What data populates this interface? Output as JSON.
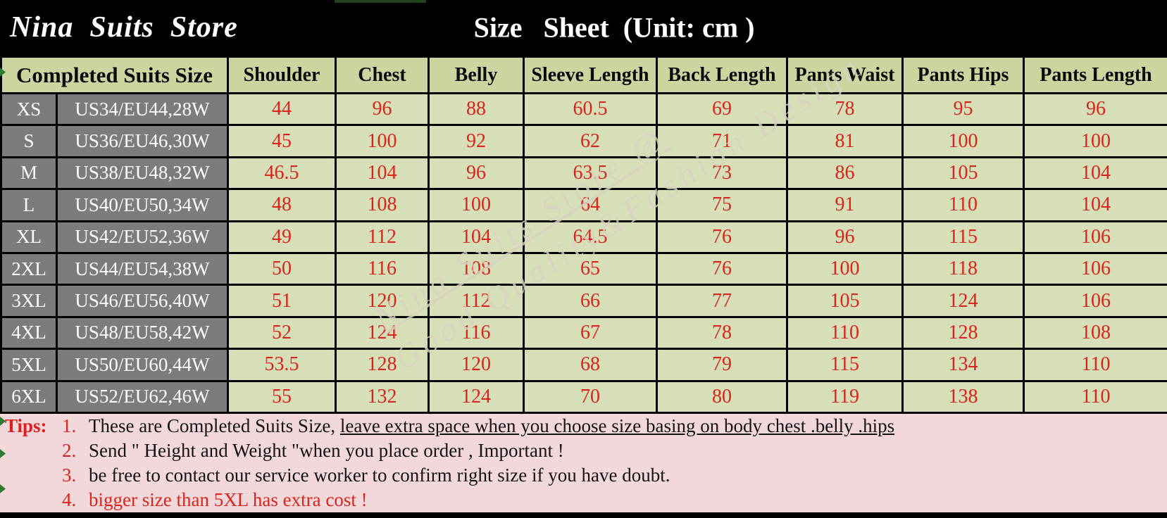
{
  "titlebar": {
    "store_name": "Nina  Suits  Store",
    "sheet_title": "Size   Sheet  (Unit: cm )"
  },
  "table": {
    "merged_header": "Completed Suits Size",
    "columns": [
      "Shoulder",
      "Chest",
      "Belly",
      "Sleeve Length",
      "Back Length",
      "Pants Waist",
      "Pants Hips",
      "Pants Length"
    ],
    "rows": [
      {
        "size": "XS",
        "us_eu": "US34/EU44,28W",
        "values": [
          "44",
          "96",
          "88",
          "60.5",
          "69",
          "78",
          "95",
          "96"
        ]
      },
      {
        "size": "S",
        "us_eu": "US36/EU46,30W",
        "values": [
          "45",
          "100",
          "92",
          "62",
          "71",
          "81",
          "100",
          "100"
        ]
      },
      {
        "size": "M",
        "us_eu": "US38/EU48,32W",
        "values": [
          "46.5",
          "104",
          "96",
          "63.5",
          "73",
          "86",
          "105",
          "104"
        ]
      },
      {
        "size": "L",
        "us_eu": "US40/EU50,34W",
        "values": [
          "48",
          "108",
          "100",
          "64",
          "75",
          "91",
          "110",
          "104"
        ]
      },
      {
        "size": "XL",
        "us_eu": "US42/EU52,36W",
        "values": [
          "49",
          "112",
          "104",
          "64.5",
          "76",
          "96",
          "115",
          "106"
        ]
      },
      {
        "size": "2XL",
        "us_eu": "US44/EU54,38W",
        "values": [
          "50",
          "116",
          "108",
          "65",
          "76",
          "100",
          "118",
          "106"
        ]
      },
      {
        "size": "3XL",
        "us_eu": "US46/EU56,40W",
        "values": [
          "51",
          "120",
          "112",
          "66",
          "77",
          "105",
          "124",
          "106"
        ]
      },
      {
        "size": "4XL",
        "us_eu": "US48/EU58,42W",
        "values": [
          "52",
          "124",
          "116",
          "67",
          "78",
          "110",
          "128",
          "108"
        ]
      },
      {
        "size": "5XL",
        "us_eu": "US50/EU60,44W",
        "values": [
          "53.5",
          "128",
          "120",
          "68",
          "79",
          "115",
          "134",
          "110"
        ]
      },
      {
        "size": "6XL",
        "us_eu": "US52/EU62,46W",
        "values": [
          "55",
          "132",
          "124",
          "70",
          "80",
          "119",
          "138",
          "110"
        ]
      }
    ]
  },
  "watermark": {
    "line1": "Nina Suits Store @",
    "line2": "Good Quality&Fashion Design"
  },
  "tips": {
    "label": "Tips:",
    "items": [
      {
        "num": "1.",
        "lead": "These are Completed Suits Size, ",
        "underline": "leave extra space when you choose size basing on body chest .belly .hips",
        "red": false
      },
      {
        "num": "2.",
        "lead": "Send \" Height and Weight \"when you place order , Important !",
        "underline": "",
        "red": false
      },
      {
        "num": "3.",
        "lead": "be free to contact our service worker to confirm right size if you have doubt.",
        "underline": "",
        "red": false
      },
      {
        "num": "4.",
        "lead": "bigger size than 5XL has extra cost !",
        "underline": "",
        "red": true
      }
    ]
  },
  "colors": {
    "title_bg": "#000000",
    "title_text": "#ffffff",
    "header_green": "#cbd5a0",
    "cell_green": "#d7dfb8",
    "size_gray": "#7c7c7c",
    "value_red": "#d9251c",
    "tips_pink": "#f2d8da",
    "border_black": "#000000",
    "watermark_cream": "#d8d3bf"
  }
}
